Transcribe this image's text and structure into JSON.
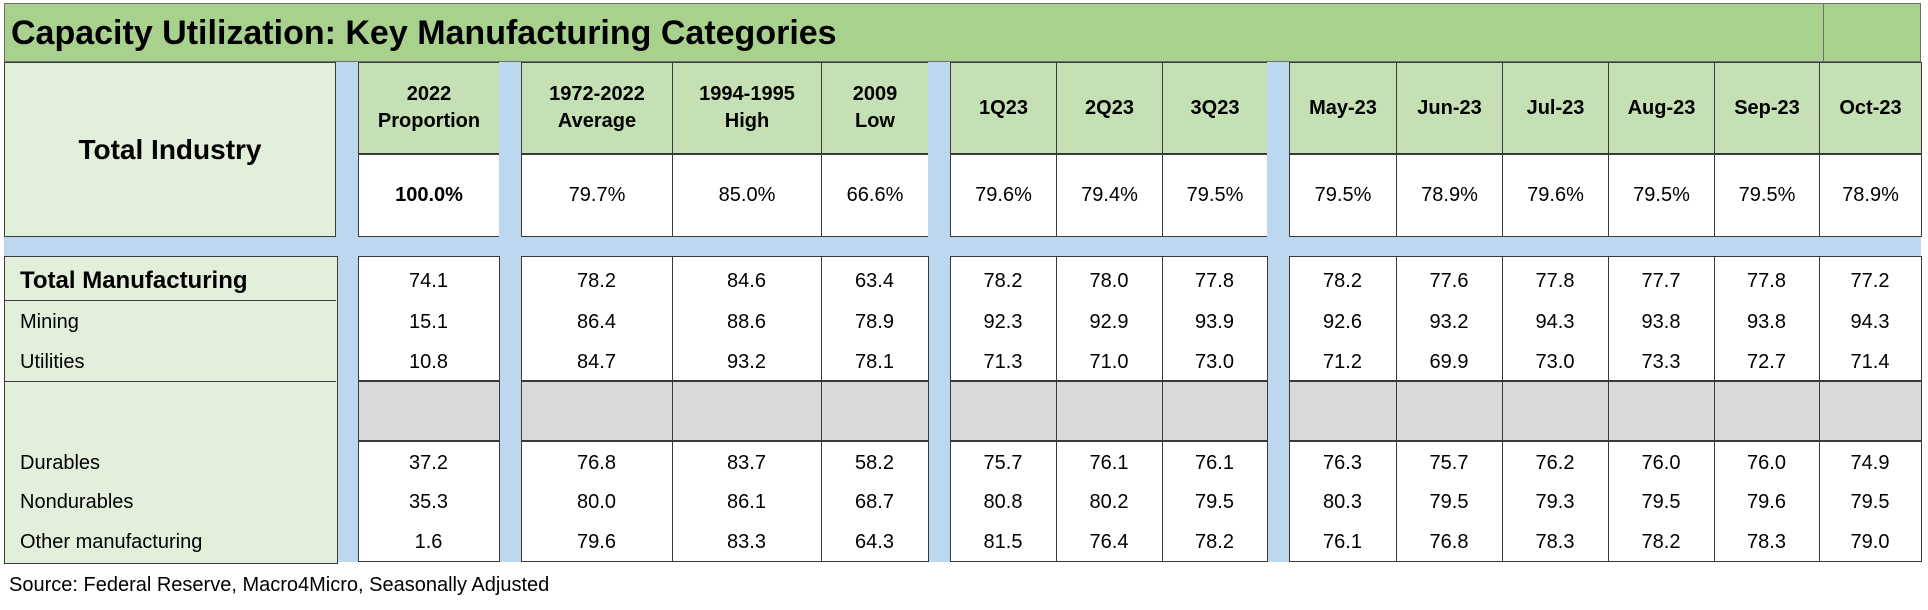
{
  "title": "Capacity Utilization: Key Manufacturing Categories",
  "header": {
    "row_label": "Total Industry",
    "columns": [
      {
        "line1": "2022",
        "line2": "Proportion"
      },
      {
        "line1": "1972-2022",
        "line2": "Average"
      },
      {
        "line1": "1994-1995",
        "line2": "High"
      },
      {
        "line1": "2009",
        "line2": "Low"
      },
      {
        "line1": "1Q23",
        "line2": ""
      },
      {
        "line1": "2Q23",
        "line2": ""
      },
      {
        "line1": "3Q23",
        "line2": ""
      },
      {
        "line1": "May-23",
        "line2": ""
      },
      {
        "line1": "Jun-23",
        "line2": ""
      },
      {
        "line1": "Jul-23",
        "line2": ""
      },
      {
        "line1": "Aug-23",
        "line2": ""
      },
      {
        "line1": "Sep-23",
        "line2": ""
      },
      {
        "line1": "Oct-23",
        "line2": ""
      }
    ],
    "total_values": [
      "100.0%",
      "79.7%",
      "85.0%",
      "66.6%",
      "79.6%",
      "79.4%",
      "79.5%",
      "79.5%",
      "78.9%",
      "79.6%",
      "79.5%",
      "79.5%",
      "78.9%"
    ]
  },
  "rows": [
    {
      "label": "Total Manufacturing",
      "values": [
        "74.1",
        "78.2",
        "84.6",
        "63.4",
        "78.2",
        "78.0",
        "77.8",
        "78.2",
        "77.6",
        "77.8",
        "77.7",
        "77.8",
        "77.2"
      ]
    },
    {
      "label": "Mining",
      "values": [
        "15.1",
        "86.4",
        "88.6",
        "78.9",
        "92.3",
        "92.9",
        "93.9",
        "92.6",
        "93.2",
        "94.3",
        "93.8",
        "93.8",
        "94.3"
      ]
    },
    {
      "label": "Utilities",
      "values": [
        "10.8",
        "84.7",
        "93.2",
        "78.1",
        "71.3",
        "71.0",
        "73.0",
        "71.2",
        "69.9",
        "73.0",
        "73.3",
        "72.7",
        "71.4"
      ]
    },
    {
      "label": "Durables",
      "values": [
        "37.2",
        "76.8",
        "83.7",
        "58.2",
        "75.7",
        "76.1",
        "76.1",
        "76.3",
        "75.7",
        "76.2",
        "76.0",
        "76.0",
        "74.9"
      ]
    },
    {
      "label": "Nondurables",
      "values": [
        "35.3",
        "80.0",
        "86.1",
        "68.7",
        "80.8",
        "80.2",
        "79.5",
        "80.3",
        "79.5",
        "79.3",
        "79.5",
        "79.6",
        "79.5"
      ]
    },
    {
      "label": "Other manufacturing",
      "values": [
        "1.6",
        "79.6",
        "83.3",
        "64.3",
        "81.5",
        "76.4",
        "78.2",
        "76.1",
        "76.8",
        "78.3",
        "78.2",
        "78.3",
        "79.0"
      ]
    }
  ],
  "source": "Source: Federal Reserve, Macro4Micro, Seasonally Adjusted",
  "colors": {
    "title_fill": "#a9d18e",
    "header_fill": "#c5e0b4",
    "label_fill": "#e2efda",
    "separator_fill": "#bdd7ee",
    "blank_fill": "#d9d9d9"
  }
}
